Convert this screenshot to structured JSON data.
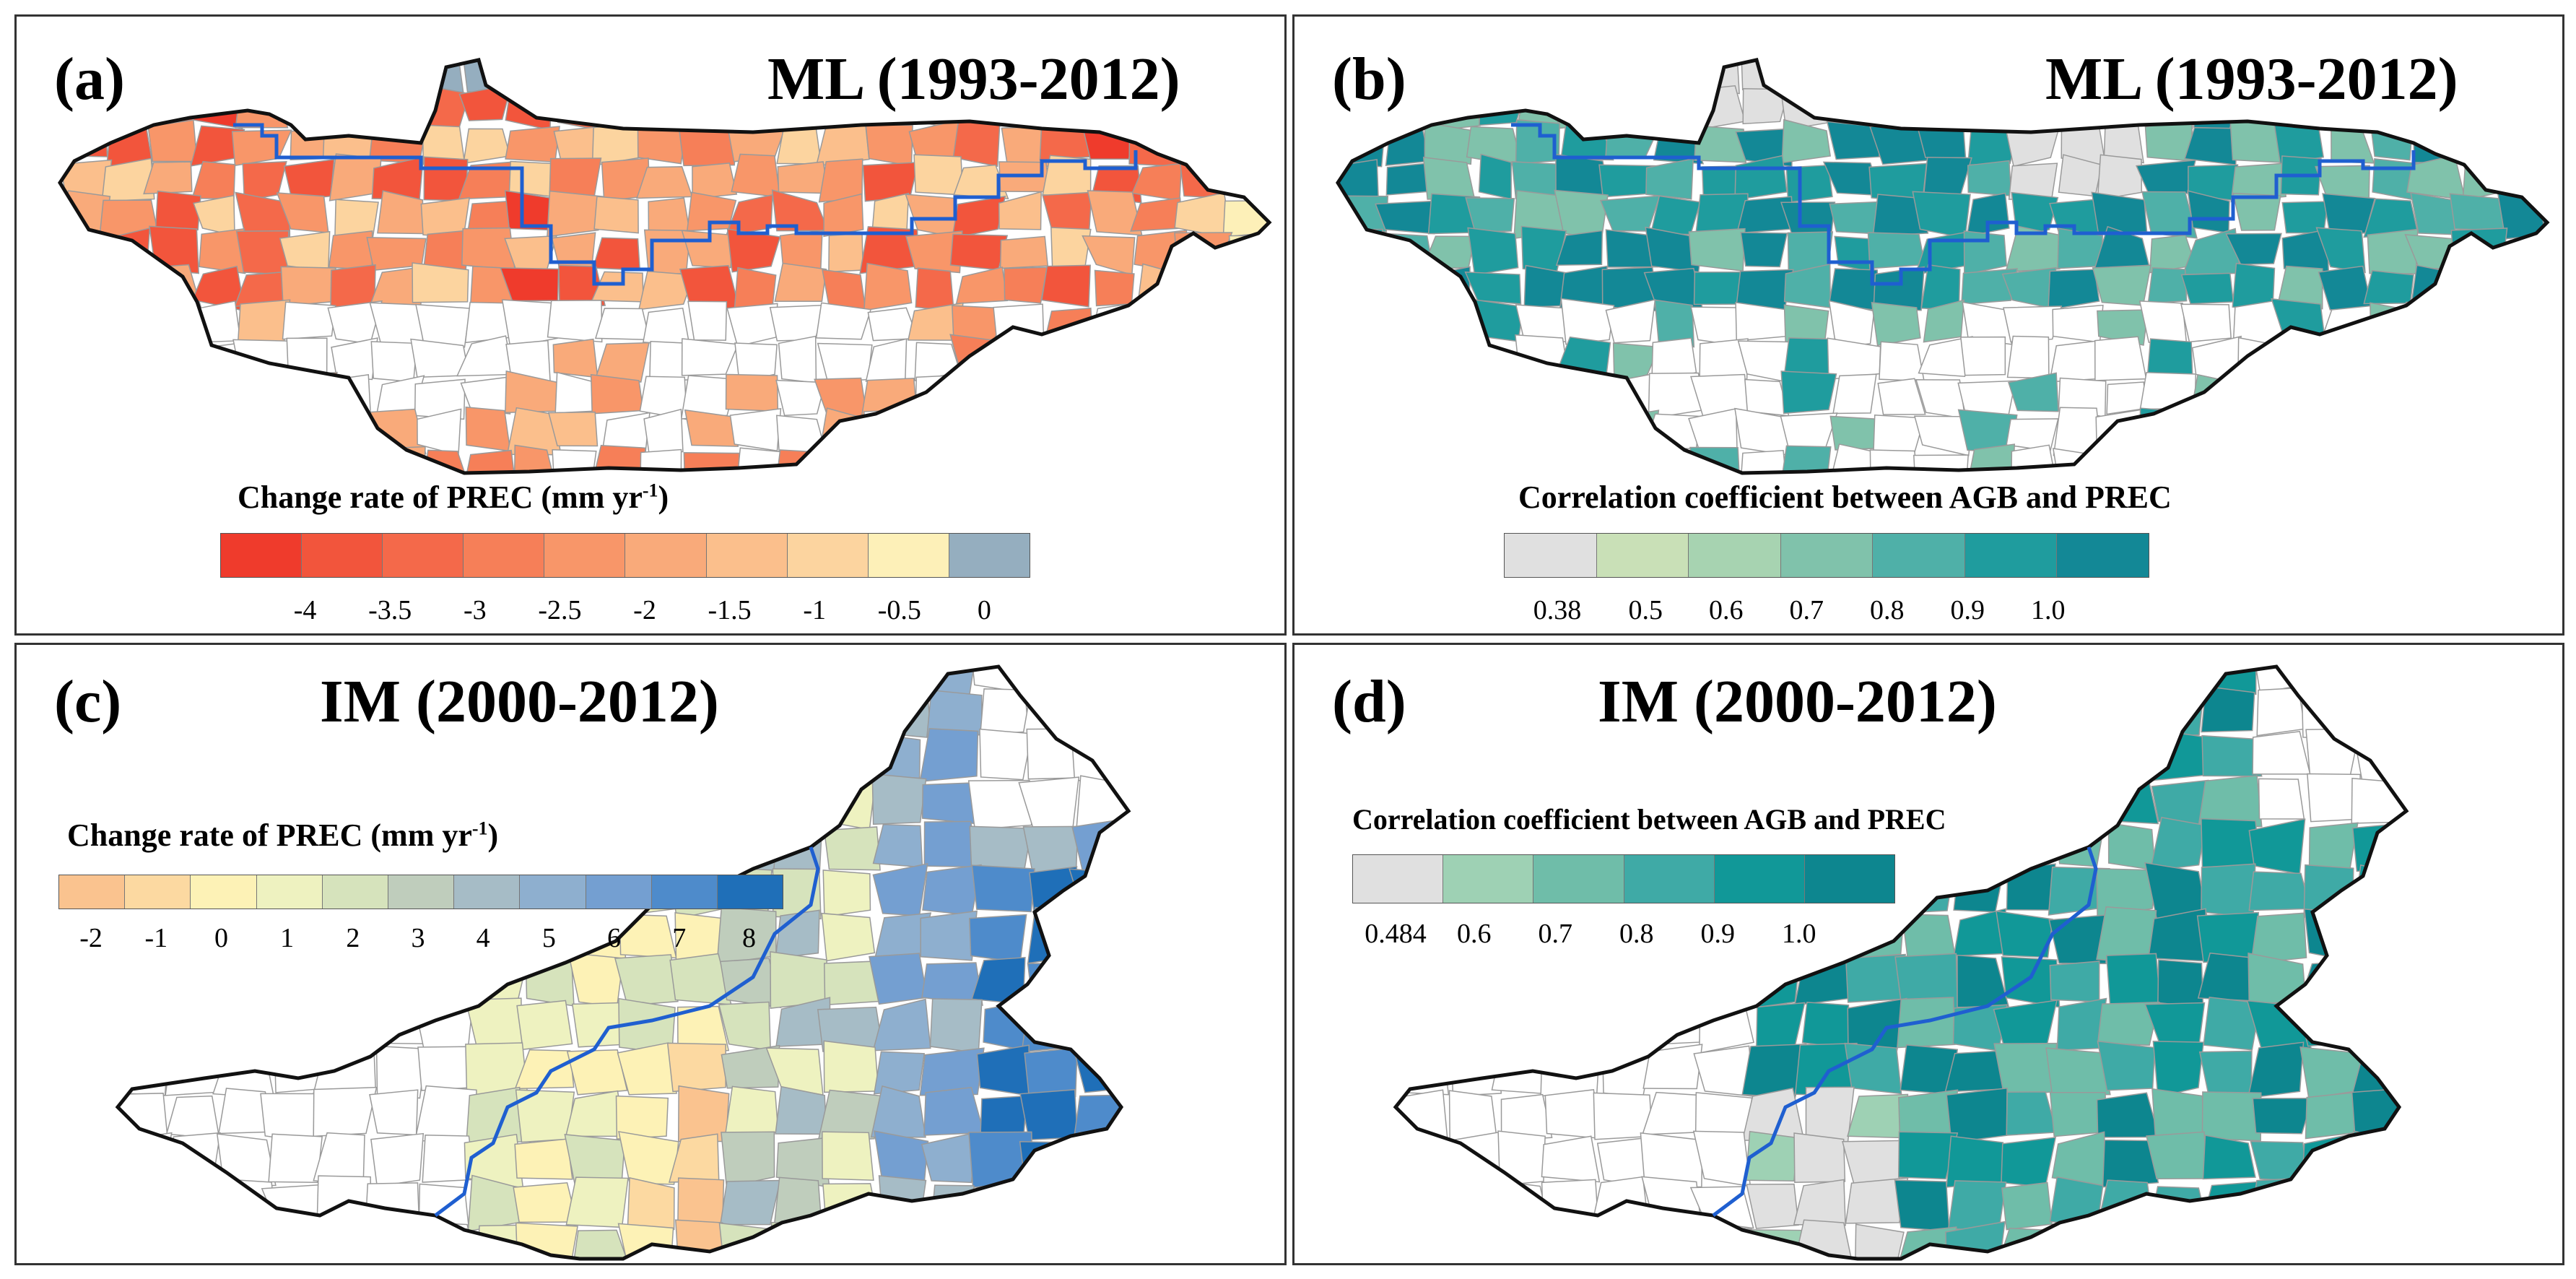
{
  "panels": [
    {
      "id": "a",
      "label": "(a)",
      "title": "ML (1993-2012)",
      "region": "ML",
      "legend_title": "Change rate of PREC (mm yr",
      "legend_sup": "-1",
      "legend_close": ")",
      "colors": [
        "#ef3b2c",
        "#f2553c",
        "#f4694a",
        "#f67f58",
        "#f89669",
        "#f9aa7a",
        "#fbbf8c",
        "#fcd49f",
        "#fdf0b8",
        "#95aebf"
      ],
      "ticks": [
        "-4",
        "-3.5",
        "-3",
        "-2.5",
        "-2",
        "-1.5",
        "-1",
        "-0.5",
        "0"
      ]
    },
    {
      "id": "b",
      "label": "(b)",
      "title": "ML (1993-2012)",
      "region": "ML",
      "legend_title": "Correlation coefficient between AGB and PREC",
      "colors": [
        "#e0e0e0",
        "#c9e0b7",
        "#a7d3b1",
        "#80c2ab",
        "#4fb0a8",
        "#1f9c9e",
        "#138896"
      ],
      "ticks": [
        "0.38",
        "0.5",
        "0.6",
        "0.7",
        "0.8",
        "0.9",
        "1.0"
      ]
    },
    {
      "id": "c",
      "label": "(c)",
      "title": "IM (2000-2012)",
      "region": "IM",
      "legend_title": "Change rate of PREC (mm yr",
      "legend_sup": "-1",
      "legend_close": ")",
      "colors": [
        "#fac38f",
        "#fcd9a1",
        "#fdf2b6",
        "#eef2c0",
        "#d6e3bc",
        "#bfcdbc",
        "#a6bcc6",
        "#8eafcf",
        "#749fd1",
        "#4e8bcb",
        "#1f6fb8"
      ],
      "ticks": [
        "-2",
        "-1",
        "0",
        "1",
        "2",
        "3",
        "4",
        "5",
        "6",
        "7",
        "8"
      ]
    },
    {
      "id": "d",
      "label": "(d)",
      "title": "IM (2000-2012)",
      "region": "IM",
      "legend_title": "Correlation coefficient between AGB and PREC",
      "colors": [
        "#e0e0e0",
        "#9ed1b4",
        "#6fbda9",
        "#3faaa6",
        "#119898",
        "#0d868f"
      ],
      "ticks": [
        "0.484",
        "0.6",
        "0.7",
        "0.8",
        "0.9",
        "1.0"
      ]
    }
  ]
}
